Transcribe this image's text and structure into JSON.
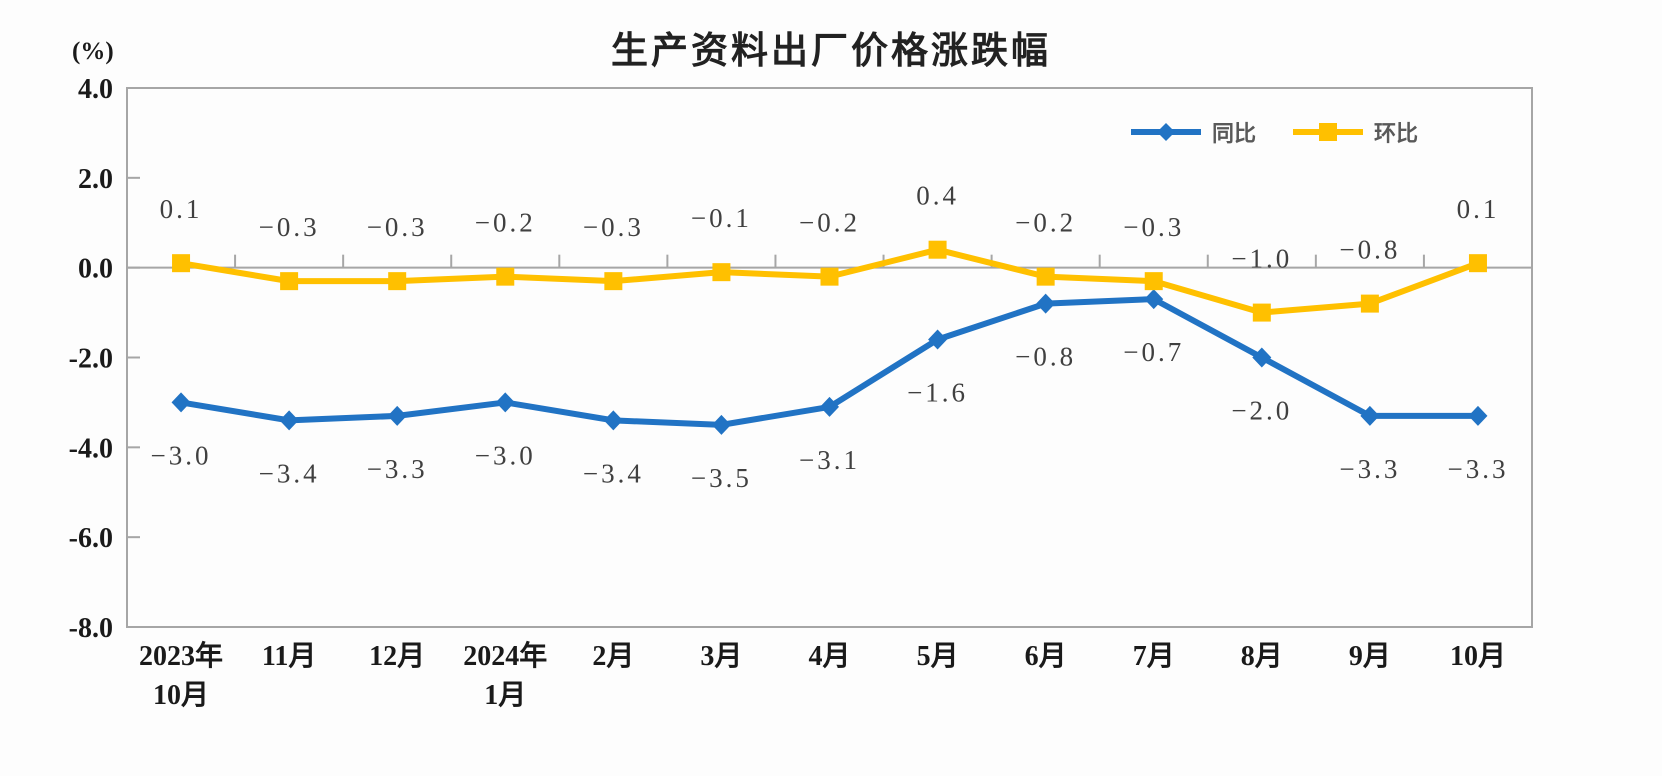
{
  "title": "生产资料出厂价格涨跌幅",
  "y_axis_unit": "(%)",
  "legend": {
    "items": [
      {
        "label": "同比"
      },
      {
        "label": "环比"
      }
    ]
  },
  "chart_data": {
    "type": "line",
    "title": "生产资料出厂价格涨跌幅",
    "categories": [
      [
        "2023年",
        "10月"
      ],
      [
        "11月"
      ],
      [
        "12月"
      ],
      [
        "2024年",
        "1月"
      ],
      [
        "2月"
      ],
      [
        "3月"
      ],
      [
        "4月"
      ],
      [
        "5月"
      ],
      [
        "6月"
      ],
      [
        "7月"
      ],
      [
        "8月"
      ],
      [
        "9月"
      ],
      [
        "10月"
      ]
    ],
    "series": [
      {
        "name": "同比",
        "color": "#2173c4",
        "marker": "diamond",
        "labels_position": "below",
        "values": [
          -3.0,
          -3.4,
          -3.3,
          -3.0,
          -3.4,
          -3.5,
          -3.1,
          -1.6,
          -0.8,
          -0.7,
          -2.0,
          -3.3,
          -3.3
        ]
      },
      {
        "name": "环比",
        "color": "#ffc000",
        "marker": "square",
        "labels_position": "above",
        "values": [
          0.1,
          -0.3,
          -0.3,
          -0.2,
          -0.3,
          -0.1,
          -0.2,
          0.4,
          -0.2,
          -0.3,
          -1.0,
          -0.8,
          0.1
        ]
      }
    ],
    "ylim": [
      -8.0,
      4.0
    ],
    "ytick_step": 2.0,
    "yticks_labels": [
      "4.0",
      "2.0",
      "0.0",
      "-2.0",
      "-4.0",
      "-6.0",
      "-8.0"
    ],
    "grid": false,
    "axis_crosses_at": 0,
    "legend_position": "top-right",
    "axis_color": "#a6a6a6",
    "data_label_color": "#404040"
  }
}
